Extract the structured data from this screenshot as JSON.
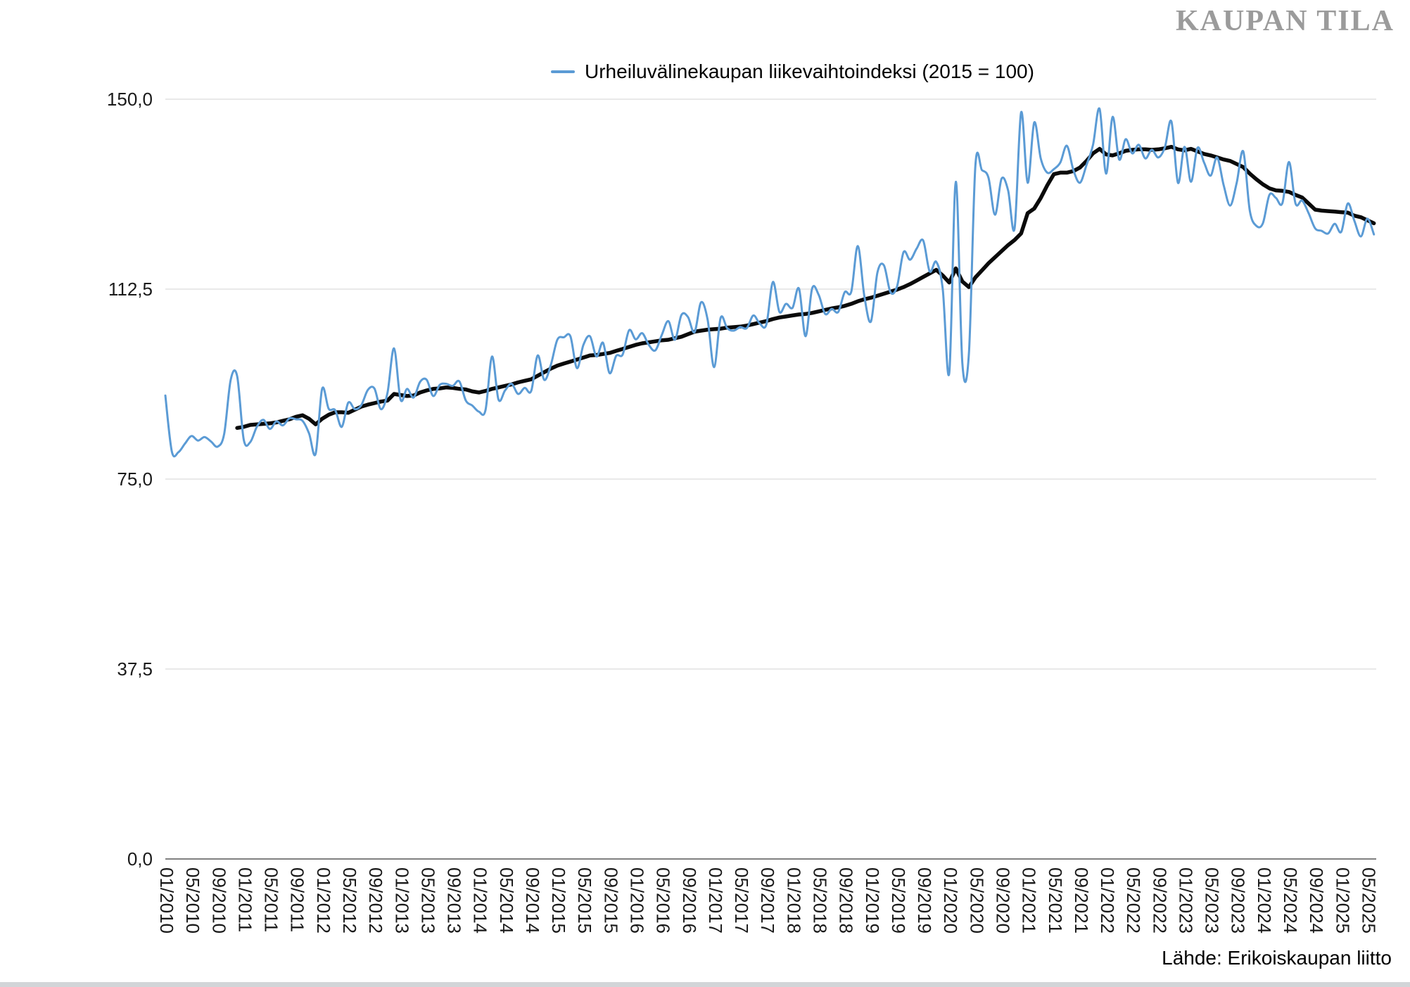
{
  "header": {
    "logo": "KAUPAN TILA"
  },
  "legend": {
    "label": "Urheiluvälinekaupan liikevaihtoindeksi (2015 = 100)"
  },
  "source": {
    "text": "Lähde: Erikoiskaupan liitto"
  },
  "chart_data": {
    "type": "line",
    "title": "Urheiluvälinekaupan liikevaihtoindeksi (2015 = 100)",
    "xlabel": "",
    "ylabel": "",
    "ylim": [
      0,
      150
    ],
    "grid": "horizontal",
    "grid_color": "#dcdcdc",
    "zero_line_color": "#6e6e6e",
    "legend_position": "top-center",
    "x_unit": "month",
    "x_start": "01/2010",
    "x_end": "06/2025",
    "tick_every": 4,
    "y_ticks": [
      {
        "value": 0,
        "label": "0,0"
      },
      {
        "value": 37.5,
        "label": "37,5"
      },
      {
        "value": 75,
        "label": "75,0"
      },
      {
        "value": 112.5,
        "label": "112,5"
      },
      {
        "value": 150,
        "label": "150,0"
      }
    ],
    "x_tick_labels": [
      "01/2010",
      "05/2010",
      "09/2010",
      "01/2011",
      "05/2011",
      "09/2011",
      "01/2012",
      "05/2012",
      "09/2012",
      "01/2013",
      "05/2013",
      "09/2013",
      "01/2014",
      "05/2014",
      "09/2014",
      "01/2015",
      "05/2015",
      "09/2015",
      "01/2016",
      "05/2016",
      "09/2016",
      "01/2017",
      "05/2017",
      "09/2017",
      "01/2018",
      "05/2018",
      "09/2018",
      "01/2019",
      "05/2019",
      "09/2019",
      "01/2020",
      "05/2020",
      "09/2020",
      "01/2021",
      "05/2021",
      "09/2021",
      "01/2022",
      "05/2022",
      "09/2022",
      "01/2023",
      "05/2023",
      "09/2023",
      "01/2024",
      "05/2024",
      "09/2024",
      "01/2025",
      "05/2025"
    ],
    "series": [
      {
        "id": "monthly-index-line",
        "name": "Urheiluvälinekaupan liikevaihtoindeksi (2015 = 100)",
        "color": "#5b9bd5",
        "line_width": 3,
        "smooth": true,
        "start_index": 0,
        "values": [
          91.5,
          80.4,
          80.3,
          82,
          83.5,
          82.6,
          83.3,
          82.4,
          81.4,
          83.9,
          94.6,
          95.3,
          82.8,
          82.3,
          85.3,
          86.7,
          84.9,
          86.4,
          85.6,
          87,
          86.8,
          86.5,
          84,
          80,
          92.8,
          88.9,
          88.6,
          85.3,
          90.1,
          88.8,
          89.6,
          92.6,
          92.9,
          88.8,
          92,
          100.8,
          90.7,
          92.8,
          91.1,
          94.2,
          94.6,
          91.4,
          93.6,
          93.8,
          93.4,
          94.3,
          90.5,
          89.5,
          88.3,
          88.6,
          99.2,
          90.7,
          92.5,
          93.8,
          91.8,
          93,
          92.4,
          99.4,
          94.6,
          97.5,
          102.5,
          103,
          103.2,
          96.9,
          101.5,
          103.2,
          99.2,
          101.9,
          95.9,
          99.3,
          99.6,
          104.4,
          102.6,
          103.8,
          101.5,
          100.4,
          103.5,
          106.2,
          102.5,
          107.4,
          107,
          104,
          109.9,
          106.5,
          97.1,
          106.8,
          104.8,
          104.3,
          105,
          104.8,
          107.3,
          105.7,
          105.5,
          113.9,
          108,
          109.6,
          108.8,
          112.6,
          103.2,
          112.6,
          111.4,
          107.6,
          108.6,
          108,
          111.9,
          112,
          121,
          111.1,
          106.1,
          115.8,
          117.2,
          111.9,
          113,
          119.8,
          118.3,
          120.5,
          122.1,
          116,
          117.9,
          112.5,
          96,
          133.7,
          97.8,
          99.8,
          136.9,
          136,
          134.5,
          127.2,
          134.3,
          132,
          124.5,
          147.4,
          133.5,
          145.4,
          138.3,
          135.5,
          136.2,
          137.5,
          140.8,
          136,
          133.5,
          137,
          141,
          148.1,
          135.3,
          146.5,
          138.1,
          142.1,
          139.3,
          141,
          138.3,
          140,
          138.5,
          140.5,
          145.6,
          133.5,
          140.6,
          133.7,
          140.4,
          137.5,
          134.9,
          138.5,
          133,
          129,
          133.5,
          139.7,
          128,
          125,
          125.5,
          131.1,
          130.5,
          129.5,
          137.6,
          129.4,
          130,
          127.5,
          124.5,
          124,
          123.5,
          125.4,
          123.8,
          129.4,
          126,
          122.9,
          126.4,
          123.3
        ]
      },
      {
        "id": "trend-line",
        "name": "",
        "color": "#0a0a0a",
        "line_width": 5.5,
        "smooth": false,
        "start_index": 11,
        "values": [
          85.1,
          85.3,
          85.7,
          85.8,
          85.9,
          86,
          86.2,
          86.5,
          86.8,
          87.3,
          87.6,
          86.9,
          85.8,
          86.9,
          87.7,
          88.2,
          88.2,
          88.1,
          88.7,
          89.3,
          89.7,
          90,
          90.3,
          90.5,
          91.8,
          91.6,
          91.4,
          91.5,
          92.1,
          92.5,
          92.8,
          92.9,
          93.1,
          93,
          92.8,
          92.7,
          92.3,
          92.1,
          92.4,
          92.8,
          93.1,
          93.4,
          93.7,
          94.1,
          94.4,
          94.7,
          95.4,
          96.1,
          96.8,
          97.4,
          97.8,
          98.2,
          98.6,
          99,
          99.4,
          99.5,
          99.7,
          99.9,
          100.3,
          100.7,
          101.1,
          101.5,
          101.8,
          102,
          102.2,
          102.4,
          102.5,
          102.8,
          103.1,
          103.6,
          104.1,
          104.3,
          104.5,
          104.6,
          104.7,
          104.9,
          105,
          105.1,
          105.3,
          105.6,
          105.9,
          106.2,
          106.6,
          106.9,
          107.1,
          107.3,
          107.5,
          107.6,
          107.8,
          108.1,
          108.4,
          108.7,
          108.9,
          109.2,
          109.6,
          110.1,
          110.5,
          110.8,
          111.2,
          111.6,
          112,
          112.4,
          112.9,
          113.5,
          114.2,
          114.9,
          115.6,
          116.3,
          115.2,
          113.8,
          116.6,
          114,
          112.9,
          114.8,
          116.2,
          117.6,
          118.8,
          120,
          121.2,
          122.2,
          123.5,
          127.5,
          128.4,
          130.5,
          133,
          135.2,
          135.5,
          135.5,
          135.8,
          136.5,
          137.8,
          139.3,
          140.2,
          139.1,
          138.9,
          139.3,
          139.8,
          140,
          140.1,
          140.1,
          140,
          140.1,
          140.3,
          140.6,
          140.1,
          139.9,
          140.2,
          139.7,
          139.2,
          138.9,
          138.5,
          138.1,
          137.8,
          137.2,
          136.6,
          135.3,
          134.2,
          133.2,
          132.4,
          132,
          131.9,
          131.7,
          131.1,
          130.6,
          129.4,
          128.2,
          128,
          127.9,
          127.8,
          127.7,
          127.6,
          127,
          126.7,
          126.1,
          125.5
        ]
      }
    ]
  }
}
